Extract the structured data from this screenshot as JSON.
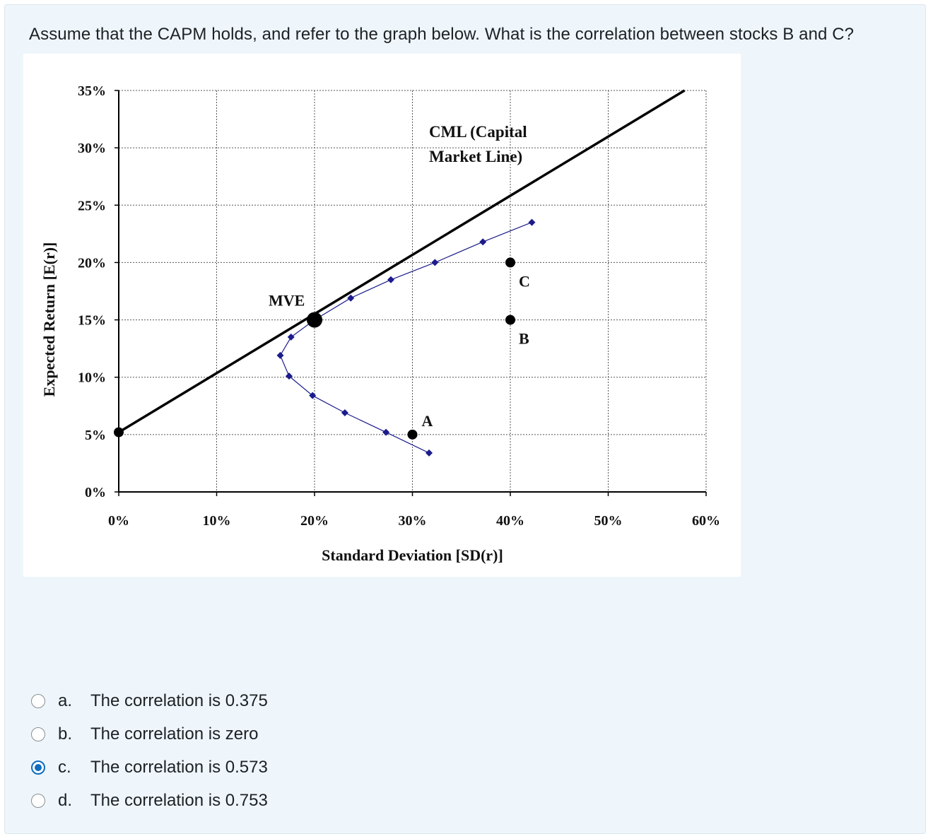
{
  "question": "Assume that the CAPM holds, and refer to the graph below. What is the correlation between stocks B and C?",
  "options": [
    {
      "letter": "a.",
      "text": "The correlation is 0.375",
      "selected": false
    },
    {
      "letter": "b.",
      "text": "The correlation is zero",
      "selected": false
    },
    {
      "letter": "c.",
      "text": "The correlation is 0.573",
      "selected": true
    },
    {
      "letter": "d.",
      "text": "The correlation is 0.753",
      "selected": false
    }
  ],
  "chart_data": {
    "type": "scatter",
    "xlabel": "Standard Deviation [SD(r)]",
    "ylabel": "Expected Return [E(r)]",
    "xlim": [
      0,
      60
    ],
    "ylim": [
      0,
      35
    ],
    "x_ticks": [
      "0%",
      "10%",
      "20%",
      "30%",
      "40%",
      "50%",
      "60%"
    ],
    "y_ticks": [
      "0%",
      "5%",
      "10%",
      "15%",
      "20%",
      "25%",
      "30%",
      "35%"
    ],
    "grid": true,
    "series": [
      {
        "name": "",
        "style": "line-markers",
        "color": "#1c1c8c",
        "points": [
          [
            31.7,
            3.4
          ],
          [
            27.3,
            5.2
          ],
          [
            23.1,
            6.9
          ],
          [
            19.8,
            8.4
          ],
          [
            17.4,
            10.1
          ],
          [
            16.5,
            11.9
          ],
          [
            17.6,
            13.5
          ],
          [
            20.0,
            15.0
          ],
          [
            23.7,
            16.9
          ],
          [
            27.8,
            18.5
          ],
          [
            32.3,
            20.0
          ],
          [
            37.2,
            21.8
          ],
          [
            42.2,
            23.5
          ]
        ]
      },
      {
        "name": "CML (Capital Market Line)",
        "style": "line",
        "color": "#000000",
        "points": [
          [
            0,
            5.2
          ],
          [
            57.8,
            35.0
          ]
        ]
      }
    ],
    "points": [
      {
        "label": "",
        "x": 0,
        "y": 5.2
      },
      {
        "label": "MVE",
        "x": 20.0,
        "y": 15.0
      },
      {
        "label": "A",
        "x": 30.0,
        "y": 5.0
      },
      {
        "label": "B",
        "x": 40.0,
        "y": 15.0
      },
      {
        "label": "C",
        "x": 40.0,
        "y": 20.0
      }
    ],
    "annotations": [
      "CML (Capital",
      "Market Line)"
    ]
  }
}
